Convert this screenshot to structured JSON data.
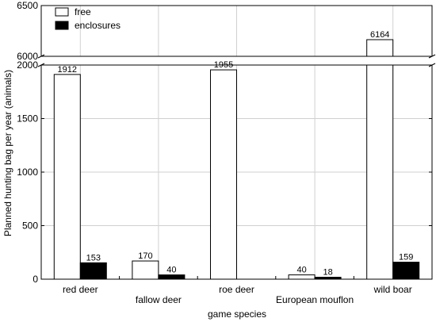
{
  "chart_data": {
    "type": "bar",
    "xlabel": "game species",
    "ylabel": "Planned hunting bag per year (animals)",
    "categories": [
      "red deer",
      "fallow deer",
      "roe deer",
      "European mouflon",
      "wild boar"
    ],
    "series": [
      {
        "name": "free",
        "values": [
          1912,
          170,
          1955,
          40,
          6164
        ],
        "color": "#ffffff"
      },
      {
        "name": "enclosures",
        "values": [
          153,
          40,
          null,
          18,
          159
        ],
        "color": "#000000"
      }
    ],
    "y_axis": {
      "broken": true,
      "lower_range": [
        0,
        2000
      ],
      "lower_ticks": [
        0,
        500,
        1000,
        1500,
        2000
      ],
      "upper_range": [
        6000,
        6500
      ],
      "upper_ticks": [
        6000,
        6500
      ]
    },
    "grid": true,
    "legend": "top-left"
  }
}
